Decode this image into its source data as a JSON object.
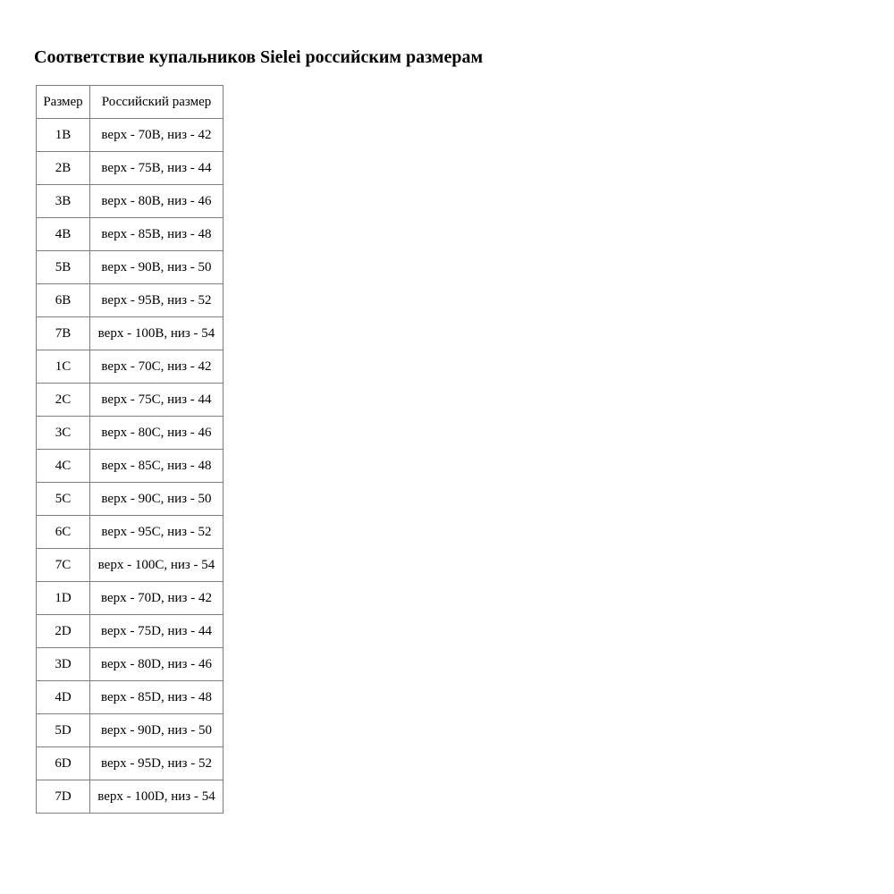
{
  "page": {
    "title": "Соответствие купальников Sielei российским размерам"
  },
  "table": {
    "columns": [
      "Размер",
      "Российский размер"
    ],
    "rows": [
      [
        "1B",
        "верх - 70B, низ - 42"
      ],
      [
        "2B",
        "верх - 75B, низ - 44"
      ],
      [
        "3B",
        "верх - 80B, низ - 46"
      ],
      [
        "4B",
        "верх - 85B, низ - 48"
      ],
      [
        "5B",
        "верх - 90B, низ - 50"
      ],
      [
        "6B",
        "верх - 95B, низ - 52"
      ],
      [
        "7B",
        "верх - 100B, низ - 54"
      ],
      [
        "1C",
        "верх - 70C, низ - 42"
      ],
      [
        "2C",
        "верх - 75C, низ - 44"
      ],
      [
        "3C",
        "верх - 80C, низ - 46"
      ],
      [
        "4C",
        "верх - 85C, низ - 48"
      ],
      [
        "5C",
        "верх - 90C, низ - 50"
      ],
      [
        "6C",
        "верх - 95C, низ - 52"
      ],
      [
        "7C",
        "верх - 100C, низ - 54"
      ],
      [
        "1D",
        "верх - 70D, низ - 42"
      ],
      [
        "2D",
        "верх - 75D, низ - 44"
      ],
      [
        "3D",
        "верх - 80D, низ - 46"
      ],
      [
        "4D",
        "верх - 85D, низ - 48"
      ],
      [
        "5D",
        "верх - 90D, низ - 50"
      ],
      [
        "6D",
        "верх - 95D, низ - 52"
      ],
      [
        "7D",
        "верх - 100D, низ - 54"
      ]
    ]
  },
  "colors": {
    "table_border": "#7d7d7d",
    "text": "#000000",
    "background": "#ffffff"
  }
}
